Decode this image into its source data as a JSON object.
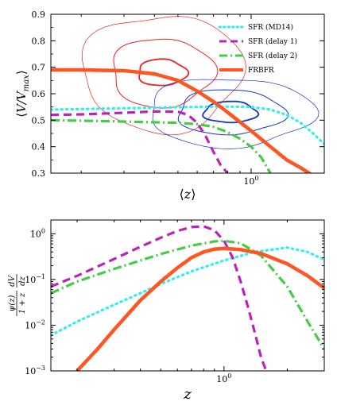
{
  "chart_data": [
    {
      "type": "line",
      "xlabel": "⟨z⟩",
      "ylabel": "⟨V/V_max⟩",
      "xscale": "log",
      "xlim": [
        0.15,
        2.0
      ],
      "ylim": [
        0.3,
        0.9
      ],
      "xtick_labels": [
        {
          "v": 1.0,
          "base": "10",
          "exp": "0"
        }
      ],
      "ytick_labels": [
        {
          "v": 0.3,
          "label": "0.3"
        },
        {
          "v": 0.4,
          "label": "0.4"
        },
        {
          "v": 0.5,
          "label": "0.5"
        },
        {
          "v": 0.6,
          "label": "0.6"
        },
        {
          "v": 0.7,
          "label": "0.7"
        },
        {
          "v": 0.8,
          "label": "0.8"
        },
        {
          "v": 0.9,
          "label": "0.9"
        }
      ],
      "legend_position": "top-right",
      "series": [
        {
          "name": "SFR (MD14)",
          "color": "#33eeee",
          "style": "dotted",
          "x": [
            0.15,
            0.2,
            0.3,
            0.4,
            0.5,
            0.6,
            0.7,
            0.8,
            1.0,
            1.2,
            1.4,
            1.6,
            1.8,
            2.0
          ],
          "y": [
            0.54,
            0.542,
            0.545,
            0.547,
            0.549,
            0.55,
            0.551,
            0.551,
            0.55,
            0.54,
            0.52,
            0.49,
            0.45,
            0.41
          ]
        },
        {
          "name": "SFR (delay 1)",
          "color": "#bb22bb",
          "style": "dashed",
          "x": [
            0.15,
            0.2,
            0.3,
            0.4,
            0.5,
            0.55,
            0.6,
            0.65,
            0.7,
            0.75,
            0.8
          ],
          "y": [
            0.52,
            0.522,
            0.528,
            0.533,
            0.532,
            0.52,
            0.49,
            0.44,
            0.38,
            0.33,
            0.3
          ]
        },
        {
          "name": "SFR (delay 2)",
          "color": "#44cc44",
          "style": "dashdot",
          "x": [
            0.15,
            0.2,
            0.3,
            0.4,
            0.5,
            0.6,
            0.7,
            0.8,
            0.9,
            1.0,
            1.1,
            1.2
          ],
          "y": [
            0.5,
            0.498,
            0.495,
            0.492,
            0.49,
            0.485,
            0.475,
            0.455,
            0.43,
            0.4,
            0.36,
            0.3
          ]
        },
        {
          "name": "FRBFR",
          "color": "#ff5522",
          "style": "solid",
          "x": [
            0.15,
            0.2,
            0.3,
            0.4,
            0.5,
            0.6,
            0.7,
            0.8,
            1.0,
            1.2,
            1.4,
            1.6,
            1.8
          ],
          "y": [
            0.69,
            0.69,
            0.687,
            0.675,
            0.65,
            0.61,
            0.57,
            0.53,
            0.46,
            0.4,
            0.35,
            0.32,
            0.29
          ]
        }
      ],
      "contours": [
        {
          "color": "#ee2222",
          "cx": 0.43,
          "cy": 0.68,
          "levels": [
            {
              "width": 0.7,
              "rx": 0.33,
              "ry": 0.22
            },
            {
              "width": 1.0,
              "rx": 0.21,
              "ry": 0.13
            },
            {
              "width": 1.8,
              "rx": 0.1,
              "ry": 0.05
            }
          ]
        },
        {
          "color": "#1133cc",
          "cx": 0.82,
          "cy": 0.53,
          "levels": [
            {
              "width": 0.7,
              "rx": 0.34,
              "ry": 0.13
            },
            {
              "width": 1.0,
              "rx": 0.22,
              "ry": 0.085
            },
            {
              "width": 1.8,
              "rx": 0.11,
              "ry": 0.04
            }
          ]
        }
      ]
    },
    {
      "type": "line",
      "xlabel": "z",
      "ylabel_parts": {
        "num": "ψ(z)",
        "den": "1 + z",
        "dnum": "dV",
        "dden": "dz"
      },
      "xscale": "log",
      "yscale": "log",
      "xlim": [
        0.15,
        3.0
      ],
      "ylim": [
        0.001,
        2.0
      ],
      "xtick_labels": [
        {
          "v": 1.0,
          "base": "10",
          "exp": "0"
        }
      ],
      "ytick_labels": [
        {
          "v": 0.001,
          "base": "10",
          "exp": "−3"
        },
        {
          "v": 0.01,
          "base": "10",
          "exp": "−2"
        },
        {
          "v": 0.1,
          "base": "10",
          "exp": "−1"
        },
        {
          "v": 1.0,
          "base": "10",
          "exp": "0"
        }
      ],
      "series": [
        {
          "name": "SFR (MD14)",
          "color": "#33eeee",
          "style": "dotted",
          "x": [
            0.15,
            0.2,
            0.3,
            0.4,
            0.5,
            0.7,
            1.0,
            1.4,
            2.0,
            2.5,
            3.0
          ],
          "y": [
            0.006,
            0.012,
            0.028,
            0.05,
            0.08,
            0.15,
            0.26,
            0.4,
            0.5,
            0.4,
            0.27
          ]
        },
        {
          "name": "SFR (delay 1)",
          "color": "#bb22bb",
          "style": "dashed",
          "x": [
            0.15,
            0.2,
            0.3,
            0.4,
            0.5,
            0.6,
            0.7,
            0.8,
            0.9,
            1.0,
            1.1,
            1.2,
            1.3,
            1.4,
            1.5,
            1.6
          ],
          "y": [
            0.07,
            0.12,
            0.28,
            0.52,
            0.82,
            1.15,
            1.4,
            1.45,
            1.2,
            0.7,
            0.3,
            0.09,
            0.025,
            0.007,
            0.002,
            0.0009
          ]
        },
        {
          "name": "SFR (delay 2)",
          "color": "#44cc44",
          "style": "dashdot",
          "x": [
            0.15,
            0.2,
            0.3,
            0.4,
            0.5,
            0.7,
            0.9,
            1.0,
            1.2,
            1.5,
            2.0,
            2.5,
            3.0
          ],
          "y": [
            0.05,
            0.09,
            0.17,
            0.26,
            0.36,
            0.55,
            0.68,
            0.7,
            0.62,
            0.33,
            0.07,
            0.012,
            0.003
          ]
        },
        {
          "name": "FRBFR",
          "color": "#ff5522",
          "style": "solid",
          "x": [
            0.2,
            0.25,
            0.3,
            0.4,
            0.5,
            0.6,
            0.7,
            0.8,
            0.9,
            1.0,
            1.2,
            1.5,
            2.0,
            2.5,
            3.0
          ],
          "y": [
            0.001,
            0.003,
            0.008,
            0.035,
            0.09,
            0.18,
            0.3,
            0.4,
            0.46,
            0.48,
            0.45,
            0.37,
            0.22,
            0.12,
            0.065
          ]
        }
      ]
    }
  ]
}
